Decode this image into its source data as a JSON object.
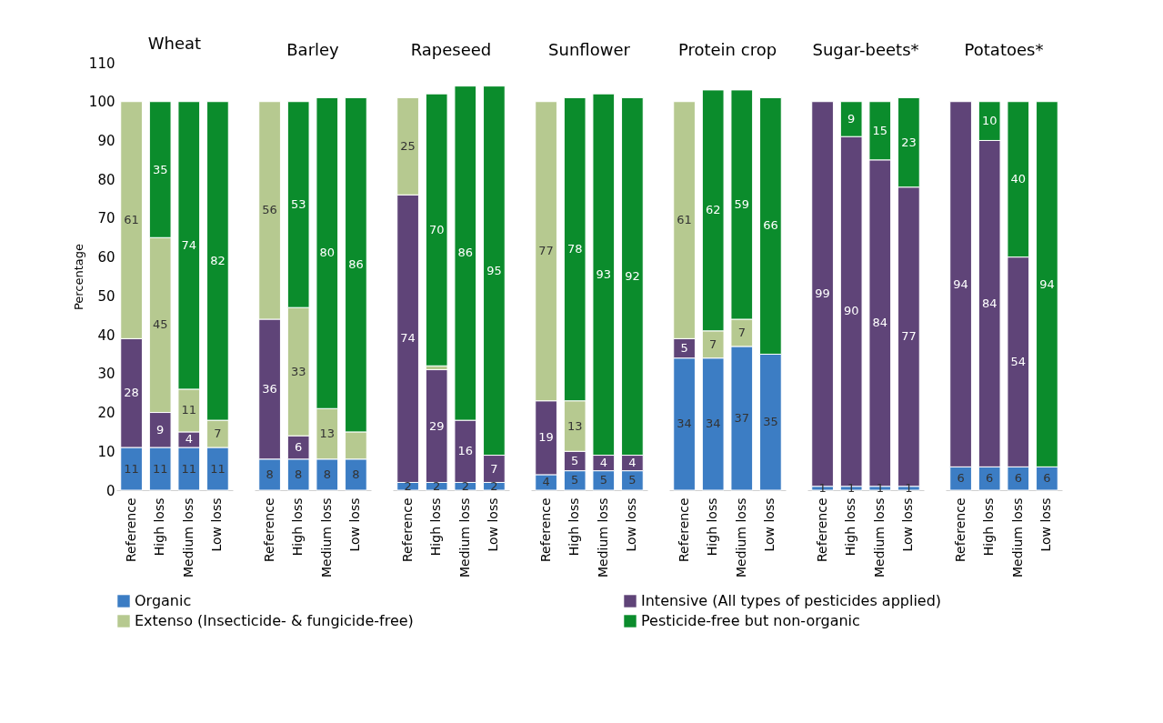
{
  "chart_data": [
    {
      "type": "bar",
      "stacked": true,
      "title": "Wheat",
      "ylabel": "Percentage",
      "ylim": [
        0,
        110
      ],
      "yticks": [
        0,
        10,
        20,
        30,
        40,
        50,
        60,
        70,
        80,
        90,
        100,
        110
      ],
      "grid": false,
      "legend": "bottom",
      "categories": [
        "Reference",
        "High loss",
        "Medium loss",
        "Low loss"
      ],
      "series": [
        {
          "name": "Organic",
          "color": "#3c7dc4",
          "values": [
            11,
            11,
            11,
            11
          ],
          "value_labels": [
            "11",
            "11",
            "11",
            "11"
          ]
        },
        {
          "name": "Intensive (All types of pesticides applied)",
          "color": "#5f4478",
          "values": [
            28,
            9,
            4,
            null
          ],
          "value_labels": [
            "28",
            "9",
            "4",
            null
          ]
        },
        {
          "name": "Extenso (Insecticide- & fungicide-free)",
          "color": "#b6c990",
          "values": [
            61,
            45,
            11,
            7
          ],
          "value_labels": [
            "61",
            "45",
            "11",
            "7"
          ]
        },
        {
          "name": "Pesticide-free but non-organic",
          "color": "#0b8c2c",
          "values": [
            null,
            35,
            74,
            82
          ],
          "value_labels": [
            null,
            "35",
            "74",
            "82"
          ]
        }
      ]
    },
    {
      "type": "bar",
      "stacked": true,
      "title": "Barley",
      "ylim": [
        0,
        110
      ],
      "yticks": [
        0,
        10,
        20,
        30,
        40,
        50,
        60,
        70,
        80,
        90,
        100,
        110
      ],
      "tick_labels": "x",
      "grid": false,
      "categories": [
        "Reference",
        "High loss",
        "Medium loss",
        "Low loss"
      ],
      "series": [
        {
          "color": "#3c7dc4",
          "values": [
            8,
            8,
            8,
            8
          ],
          "value_labels": [
            "8",
            "8",
            "8",
            "8"
          ]
        },
        {
          "color": "#5f4478",
          "values": [
            36,
            6,
            null,
            null
          ],
          "value_labels": [
            "36",
            "6",
            null,
            null
          ]
        },
        {
          "color": "#b6c990",
          "values": [
            56,
            33,
            13,
            7
          ],
          "value_labels": [
            "56",
            "33",
            "13",
            null
          ]
        },
        {
          "color": "#0b8c2c",
          "values": [
            null,
            53,
            80,
            86
          ],
          "value_labels": [
            null,
            "53",
            "80",
            "86"
          ]
        }
      ]
    },
    {
      "type": "bar",
      "stacked": true,
      "title": "Rapeseed",
      "ylim": [
        0,
        110
      ],
      "yticks": [
        0,
        10,
        20,
        30,
        40,
        50,
        60,
        70,
        80,
        90,
        100,
        110
      ],
      "tick_labels": "x",
      "grid": false,
      "categories": [
        "Reference",
        "High loss",
        "Medium loss",
        "Low loss"
      ],
      "series": [
        {
          "color": "#3c7dc4",
          "values": [
            2,
            2,
            2,
            2
          ],
          "value_labels": [
            "2",
            "2",
            "2",
            "2"
          ]
        },
        {
          "color": "#5f4478",
          "values": [
            74,
            29,
            16,
            7
          ],
          "value_labels": [
            "74",
            "29",
            "16",
            "7"
          ]
        },
        {
          "color": "#b6c990",
          "values": [
            25,
            1,
            null,
            null
          ],
          "value_labels": [
            "25",
            null,
            null,
            null
          ]
        },
        {
          "color": "#0b8c2c",
          "values": [
            null,
            70,
            86,
            95
          ],
          "value_labels": [
            null,
            "70",
            "86",
            "95"
          ]
        }
      ]
    },
    {
      "type": "bar",
      "stacked": true,
      "title": "Sunflower",
      "ylim": [
        0,
        110
      ],
      "yticks": [
        0,
        10,
        20,
        30,
        40,
        50,
        60,
        70,
        80,
        90,
        100,
        110
      ],
      "tick_labels": "x",
      "grid": false,
      "categories": [
        "Reference",
        "High loss",
        "Medium loss",
        "Low loss"
      ],
      "series": [
        {
          "color": "#3c7dc4",
          "values": [
            4,
            5,
            5,
            5
          ],
          "value_labels": [
            "4",
            "5",
            "5",
            "5"
          ]
        },
        {
          "color": "#5f4478",
          "values": [
            19,
            5,
            4,
            4
          ],
          "value_labels": [
            "19",
            "5",
            "4",
            "4"
          ]
        },
        {
          "color": "#b6c990",
          "values": [
            77,
            13,
            null,
            null
          ],
          "value_labels": [
            "77",
            "13",
            null,
            null
          ]
        },
        {
          "color": "#0b8c2c",
          "values": [
            null,
            78,
            93,
            92
          ],
          "value_labels": [
            null,
            "78",
            "93",
            "92"
          ]
        }
      ]
    },
    {
      "type": "bar",
      "stacked": true,
      "title": "Protein crop",
      "ylim": [
        0,
        110
      ],
      "yticks": [
        0,
        10,
        20,
        30,
        40,
        50,
        60,
        70,
        80,
        90,
        100,
        110
      ],
      "tick_labels": "x",
      "grid": false,
      "categories": [
        "Reference",
        "High loss",
        "Medium loss",
        "Low loss"
      ],
      "series": [
        {
          "color": "#3c7dc4",
          "values": [
            34,
            34,
            37,
            35
          ],
          "value_labels": [
            "34",
            "34",
            "37",
            "35"
          ]
        },
        {
          "color": "#5f4478",
          "values": [
            5,
            null,
            null,
            null
          ],
          "value_labels": [
            "5",
            null,
            null,
            null
          ]
        },
        {
          "color": "#b6c990",
          "values": [
            61,
            7,
            7,
            null
          ],
          "value_labels": [
            "61",
            "7",
            "7",
            null
          ]
        },
        {
          "color": "#0b8c2c",
          "values": [
            null,
            62,
            59,
            66
          ],
          "value_labels": [
            null,
            "62",
            "59",
            "66"
          ]
        }
      ]
    },
    {
      "type": "bar",
      "stacked": true,
      "title": "Sugar-beets*",
      "ylim": [
        0,
        110
      ],
      "yticks": [
        0,
        10,
        20,
        30,
        40,
        50,
        60,
        70,
        80,
        90,
        100,
        110
      ],
      "tick_labels": "x",
      "grid": false,
      "categories": [
        "Reference",
        "High loss",
        "Medium loss",
        "Low loss"
      ],
      "series": [
        {
          "color": "#3c7dc4",
          "values": [
            1,
            1,
            1,
            1
          ],
          "value_labels": [
            "1",
            "1",
            "1",
            "1"
          ]
        },
        {
          "color": "#5f4478",
          "values": [
            99,
            90,
            84,
            77
          ],
          "value_labels": [
            "99",
            "90",
            "84",
            "77"
          ]
        },
        {
          "color": "#b6c990",
          "values": [
            null,
            null,
            null,
            null
          ],
          "value_labels": [
            null,
            null,
            null,
            null
          ]
        },
        {
          "color": "#0b8c2c",
          "values": [
            null,
            9,
            15,
            23
          ],
          "value_labels": [
            null,
            "9",
            "15",
            "23"
          ]
        }
      ]
    },
    {
      "type": "bar",
      "stacked": true,
      "title": "Potatoes*",
      "ylim": [
        0,
        110
      ],
      "yticks": [
        0,
        10,
        20,
        30,
        40,
        50,
        60,
        70,
        80,
        90,
        100,
        110
      ],
      "tick_labels": "x",
      "grid": false,
      "categories": [
        "Reference",
        "High loss",
        "Medium loss",
        "Low loss"
      ],
      "series": [
        {
          "color": "#3c7dc4",
          "values": [
            6,
            6,
            6,
            6
          ],
          "value_labels": [
            "6",
            "6",
            "6",
            "6"
          ]
        },
        {
          "color": "#5f4478",
          "values": [
            94,
            84,
            54,
            null
          ],
          "value_labels": [
            "94",
            "84",
            "54",
            null
          ]
        },
        {
          "color": "#b6c990",
          "values": [
            null,
            null,
            null,
            null
          ],
          "value_labels": [
            null,
            null,
            null,
            null
          ]
        },
        {
          "color": "#0b8c2c",
          "values": [
            null,
            10,
            40,
            94
          ],
          "value_labels": [
            null,
            "10",
            "40",
            "94"
          ]
        }
      ]
    }
  ]
}
